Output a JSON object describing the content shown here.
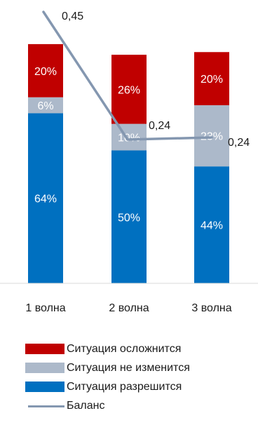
{
  "chart_data": {
    "type": "bar",
    "stacked": true,
    "categories": [
      "1 волна",
      "2 волна",
      "3 волна"
    ],
    "series": [
      {
        "name": "Ситуация разрешится",
        "values": [
          64,
          50,
          44
        ],
        "labels": [
          "64%",
          "50%",
          "44%"
        ],
        "color": "#0070c0"
      },
      {
        "name": "Ситуация не изменится",
        "values": [
          6,
          10,
          23
        ],
        "labels": [
          "6%",
          "10%",
          "23%"
        ],
        "color": "#acb9ca"
      },
      {
        "name": "Ситуация осложнится",
        "values": [
          20,
          26,
          20
        ],
        "labels": [
          "20%",
          "26%",
          "20%"
        ],
        "color": "#c00000"
      }
    ],
    "line_series": {
      "name": "Баланс",
      "values": [
        0.45,
        0.24,
        0.24
      ],
      "labels": [
        "0,45",
        "0,24",
        "0,24"
      ],
      "color": "#8497b0"
    },
    "ylim": [
      0,
      100
    ],
    "grid": false,
    "legend_position": "bottom"
  },
  "legend": {
    "items": [
      {
        "label": "Ситуация осложнится",
        "color": "#c00000",
        "kind": "box"
      },
      {
        "label": "Ситуация не изменится",
        "color": "#acb9ca",
        "kind": "box"
      },
      {
        "label": "Ситуация разрешится",
        "color": "#0070c0",
        "kind": "box"
      },
      {
        "label": "Баланс",
        "color": "#8497b0",
        "kind": "line"
      }
    ]
  }
}
